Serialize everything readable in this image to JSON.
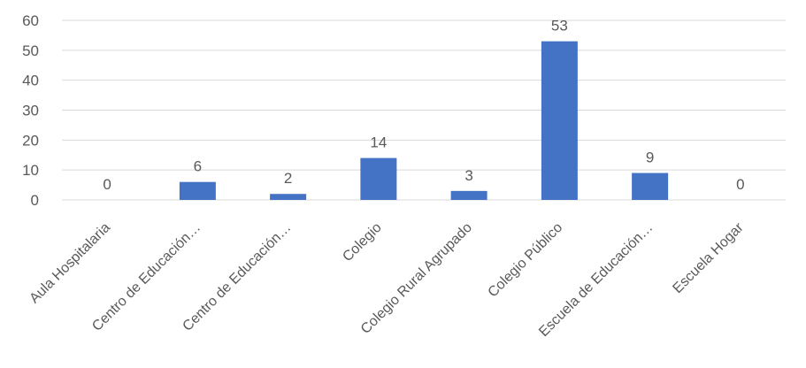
{
  "chart_data": {
    "type": "bar",
    "title": "",
    "xlabel": "",
    "ylabel": "",
    "categories": [
      "Aula Hospitalaria",
      "Centro de Educación…",
      "Centro de Educación…",
      "Colegio",
      "Colegio Rural Agrupado",
      "Colegio Público",
      "Escuela de Educación…",
      "Escuela Hogar"
    ],
    "values": [
      0,
      6,
      2,
      14,
      3,
      53,
      9,
      0
    ],
    "data_labels": [
      "0",
      "6",
      "2",
      "14",
      "3",
      "53",
      "9",
      "0"
    ],
    "ylim": [
      0,
      60
    ],
    "yticks": [
      0,
      10,
      20,
      30,
      40,
      50,
      60
    ],
    "ytick_labels": [
      "0",
      "10",
      "20",
      "30",
      "40",
      "50",
      "60"
    ],
    "grid": true,
    "legend": "none",
    "colors": {
      "bar": "#4472C4",
      "grid": "#D9D9D9",
      "text": "#595959"
    }
  }
}
